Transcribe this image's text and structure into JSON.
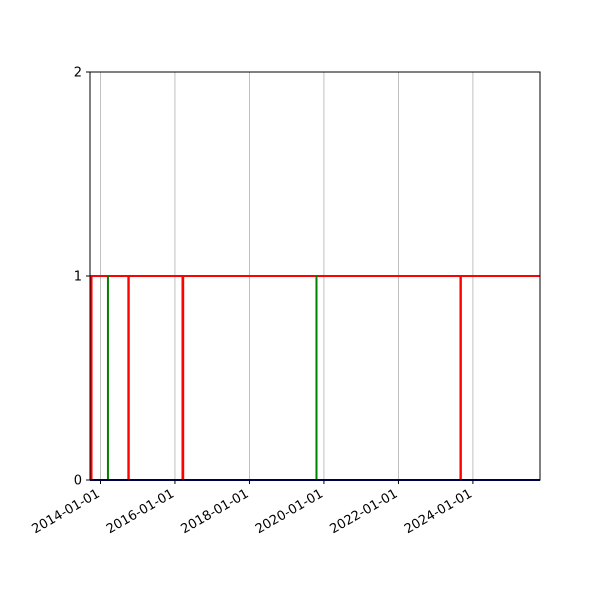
{
  "chart_data": {
    "type": "line",
    "title": "",
    "xlabel": "",
    "ylabel": "",
    "xlim": [
      "2013-09-20",
      "2025-10-20"
    ],
    "ylim": [
      0,
      2
    ],
    "grid": {
      "x": true,
      "y": false
    },
    "legend": "none",
    "x_ticks": [
      "2014-01-01",
      "2016-01-01",
      "2018-01-01",
      "2020-01-01",
      "2022-01-01",
      "2024-01-01"
    ],
    "y_ticks": [
      0,
      1,
      2
    ],
    "series": [
      {
        "color": "#ff0000",
        "points": [
          {
            "x": "2013-09-20",
            "y": 1
          },
          {
            "x": "2013-10-01",
            "y": 1
          },
          {
            "x": "2013-10-01",
            "y": 0
          },
          {
            "x": "2013-10-05",
            "y": 0
          },
          {
            "x": "2013-10-05",
            "y": 1
          },
          {
            "x": "2014-10-01",
            "y": 1
          },
          {
            "x": "2014-10-01",
            "y": 0
          },
          {
            "x": "2014-10-05",
            "y": 0
          },
          {
            "x": "2014-10-05",
            "y": 1
          },
          {
            "x": "2016-03-15",
            "y": 1
          },
          {
            "x": "2016-03-15",
            "y": 0
          },
          {
            "x": "2016-03-22",
            "y": 0
          },
          {
            "x": "2016-03-22",
            "y": 1
          },
          {
            "x": "2023-09-01",
            "y": 1
          },
          {
            "x": "2023-09-01",
            "y": 0
          },
          {
            "x": "2023-09-05",
            "y": 0
          },
          {
            "x": "2023-09-05",
            "y": 1
          },
          {
            "x": "2025-10-20",
            "y": 1
          }
        ]
      },
      {
        "color": "#008000",
        "points": [
          {
            "x": "2014-03-15",
            "y": 0
          },
          {
            "x": "2014-03-15",
            "y": 1
          },
          {
            "x": "2014-03-15",
            "y": 0
          },
          {
            "x": "2019-10-20",
            "y": 0
          },
          {
            "x": "2019-10-20",
            "y": 1
          },
          {
            "x": "2019-10-20",
            "y": 0
          }
        ]
      },
      {
        "color": "#00008b",
        "points": [
          {
            "x": "2013-09-20",
            "y": 0
          },
          {
            "x": "2025-10-20",
            "y": 0
          }
        ]
      }
    ]
  }
}
